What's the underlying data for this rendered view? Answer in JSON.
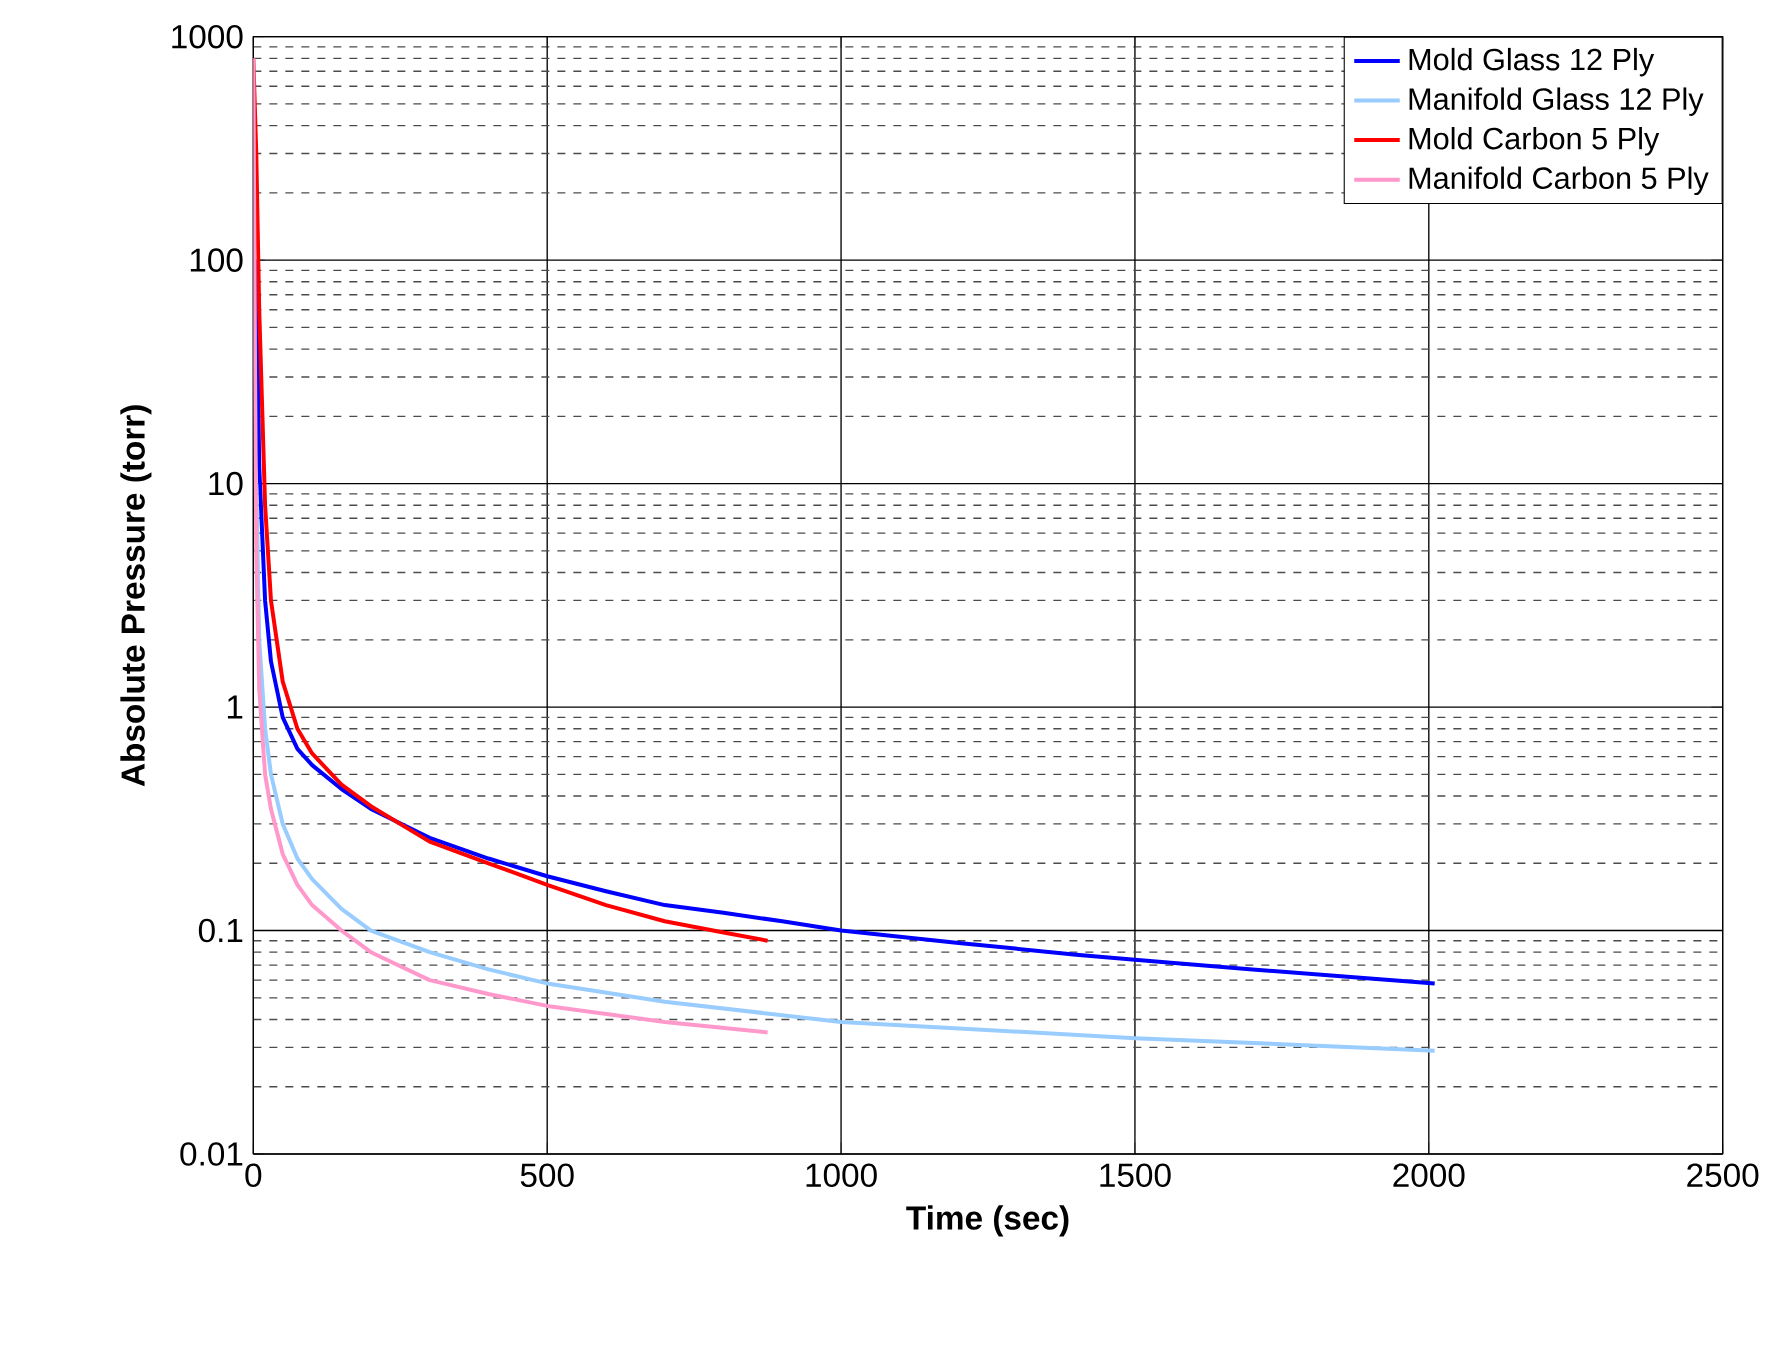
{
  "chart_data": {
    "type": "line",
    "xlabel": "Time (sec)",
    "ylabel": "Absolute Pressure (torr)",
    "log": "y",
    "grid": true,
    "legend": "top right",
    "marker": "none",
    "line_style": "solid",
    "xlim": [
      0,
      2500
    ],
    "xticks": [
      0,
      500,
      1000,
      1500,
      2000,
      2500
    ],
    "ylim": [
      0.01,
      1000
    ],
    "yticks": [
      0.01,
      0.1,
      1,
      10,
      100,
      1000
    ],
    "series": [
      {
        "name": "Mold Glass 12 Ply",
        "color": "#0000ff",
        "x": [
          5,
          10,
          20,
          30,
          50,
          75,
          100,
          150,
          200,
          300,
          400,
          500,
          600,
          700,
          800,
          900,
          1000,
          1200,
          1400,
          1500,
          1700,
          1900,
          2010
        ],
        "values": [
          100,
          12,
          3,
          1.6,
          0.9,
          0.65,
          0.55,
          0.43,
          0.35,
          0.26,
          0.21,
          0.175,
          0.15,
          0.13,
          0.12,
          0.11,
          0.1,
          0.088,
          0.078,
          0.074,
          0.067,
          0.061,
          0.058
        ]
      },
      {
        "name": "Manifold Glass 12 Ply",
        "color": "#99ccff",
        "x": [
          5,
          10,
          20,
          30,
          50,
          75,
          100,
          150,
          200,
          300,
          400,
          500,
          700,
          1000,
          1500,
          2010
        ],
        "values": [
          10,
          2,
          0.8,
          0.5,
          0.3,
          0.21,
          0.17,
          0.125,
          0.1,
          0.08,
          0.067,
          0.058,
          0.048,
          0.039,
          0.033,
          0.029
        ]
      },
      {
        "name": "Mold Carbon 5 Ply",
        "color": "#ff0000",
        "x": [
          0,
          5,
          10,
          20,
          30,
          50,
          75,
          100,
          150,
          200,
          300,
          400,
          500,
          600,
          700,
          800,
          875
        ],
        "values": [
          800,
          300,
          60,
          8,
          3,
          1.3,
          0.8,
          0.62,
          0.45,
          0.36,
          0.25,
          0.2,
          0.16,
          0.13,
          0.11,
          0.098,
          0.09
        ]
      },
      {
        "name": "Manifold Carbon 5 Ply",
        "color": "#ff99cc",
        "x": [
          0,
          3,
          5,
          10,
          20,
          30,
          50,
          75,
          100,
          150,
          200,
          300,
          400,
          500,
          700,
          875
        ],
        "values": [
          800,
          30,
          5,
          1.2,
          0.5,
          0.35,
          0.22,
          0.16,
          0.13,
          0.1,
          0.08,
          0.06,
          0.052,
          0.046,
          0.039,
          0.035
        ]
      }
    ]
  }
}
